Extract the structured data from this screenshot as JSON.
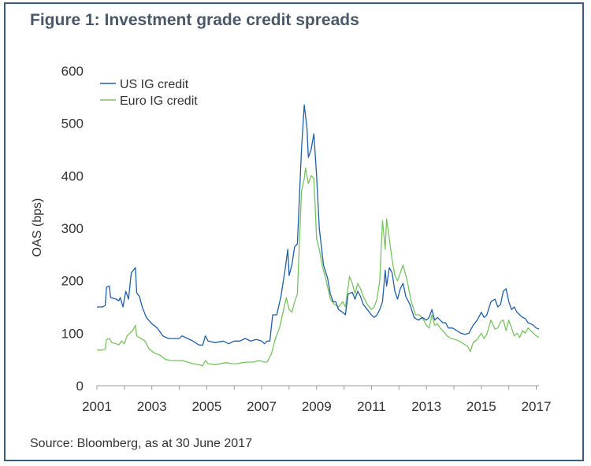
{
  "figure": {
    "title": "Figure 1: Investment grade credit spreads",
    "source": "Source: Bloomberg, as at 30 June 2017"
  },
  "colors": {
    "frame": "#3d5a80",
    "us": "#1f5fa8",
    "euro": "#78c360",
    "axis": "#9a9a9a"
  },
  "chart_data": {
    "type": "line",
    "title": "Figure 1: Investment grade credit spreads",
    "xlabel": "",
    "ylabel": "OAS (bps)",
    "xlim": [
      2001,
      2017.1
    ],
    "ylim": [
      0,
      600
    ],
    "xticks": [
      2001,
      2003,
      2005,
      2007,
      2009,
      2011,
      2013,
      2015,
      2017
    ],
    "yticks": [
      0,
      100,
      200,
      300,
      400,
      500,
      600
    ],
    "grid": false,
    "legend": "top-left",
    "series": [
      {
        "name": "US IG credit",
        "color": "#1f5fa8",
        "points": [
          [
            2001.0,
            150
          ],
          [
            2001.2,
            150
          ],
          [
            2001.3,
            153
          ],
          [
            2001.35,
            188
          ],
          [
            2001.45,
            190
          ],
          [
            2001.5,
            168
          ],
          [
            2001.7,
            165
          ],
          [
            2001.8,
            162
          ],
          [
            2001.85,
            168
          ],
          [
            2001.95,
            150
          ],
          [
            2002.05,
            180
          ],
          [
            2002.15,
            165
          ],
          [
            2002.25,
            215
          ],
          [
            2002.4,
            225
          ],
          [
            2002.45,
            177
          ],
          [
            2002.55,
            170
          ],
          [
            2002.65,
            150
          ],
          [
            2002.8,
            130
          ],
          [
            2003.0,
            118
          ],
          [
            2003.2,
            110
          ],
          [
            2003.4,
            95
          ],
          [
            2003.6,
            90
          ],
          [
            2003.8,
            90
          ],
          [
            2004.0,
            90
          ],
          [
            2004.1,
            95
          ],
          [
            2004.3,
            90
          ],
          [
            2004.5,
            85
          ],
          [
            2004.7,
            78
          ],
          [
            2004.85,
            77
          ],
          [
            2004.95,
            95
          ],
          [
            2005.05,
            85
          ],
          [
            2005.3,
            82
          ],
          [
            2005.6,
            85
          ],
          [
            2005.8,
            80
          ],
          [
            2006.0,
            85
          ],
          [
            2006.2,
            85
          ],
          [
            2006.4,
            90
          ],
          [
            2006.6,
            85
          ],
          [
            2006.8,
            88
          ],
          [
            2007.0,
            85
          ],
          [
            2007.1,
            80
          ],
          [
            2007.2,
            85
          ],
          [
            2007.3,
            85
          ],
          [
            2007.4,
            135
          ],
          [
            2007.55,
            135
          ],
          [
            2007.7,
            170
          ],
          [
            2007.85,
            220
          ],
          [
            2007.95,
            260
          ],
          [
            2008.0,
            210
          ],
          [
            2008.1,
            230
          ],
          [
            2008.2,
            265
          ],
          [
            2008.3,
            270
          ],
          [
            2008.35,
            330
          ],
          [
            2008.45,
            450
          ],
          [
            2008.55,
            535
          ],
          [
            2008.65,
            490
          ],
          [
            2008.7,
            435
          ],
          [
            2008.8,
            450
          ],
          [
            2008.9,
            480
          ],
          [
            2009.0,
            400
          ],
          [
            2009.1,
            300
          ],
          [
            2009.25,
            230
          ],
          [
            2009.4,
            205
          ],
          [
            2009.5,
            175
          ],
          [
            2009.6,
            160
          ],
          [
            2009.7,
            160
          ],
          [
            2009.8,
            145
          ],
          [
            2009.95,
            140
          ],
          [
            2010.05,
            135
          ],
          [
            2010.15,
            175
          ],
          [
            2010.3,
            178
          ],
          [
            2010.4,
            165
          ],
          [
            2010.5,
            180
          ],
          [
            2010.6,
            170
          ],
          [
            2010.7,
            155
          ],
          [
            2010.85,
            145
          ],
          [
            2011.0,
            135
          ],
          [
            2011.1,
            130
          ],
          [
            2011.2,
            135
          ],
          [
            2011.3,
            145
          ],
          [
            2011.4,
            160
          ],
          [
            2011.5,
            220
          ],
          [
            2011.55,
            190
          ],
          [
            2011.65,
            225
          ],
          [
            2011.75,
            215
          ],
          [
            2011.85,
            180
          ],
          [
            2011.95,
            165
          ],
          [
            2012.05,
            185
          ],
          [
            2012.15,
            195
          ],
          [
            2012.25,
            170
          ],
          [
            2012.4,
            155
          ],
          [
            2012.55,
            130
          ],
          [
            2012.7,
            125
          ],
          [
            2012.85,
            130
          ],
          [
            2013.0,
            125
          ],
          [
            2013.1,
            130
          ],
          [
            2013.2,
            145
          ],
          [
            2013.3,
            125
          ],
          [
            2013.4,
            130
          ],
          [
            2013.5,
            125
          ],
          [
            2013.6,
            120
          ],
          [
            2013.7,
            120
          ],
          [
            2013.8,
            110
          ],
          [
            2013.95,
            110
          ],
          [
            2014.1,
            105
          ],
          [
            2014.25,
            100
          ],
          [
            2014.4,
            98
          ],
          [
            2014.55,
            100
          ],
          [
            2014.7,
            115
          ],
          [
            2014.85,
            125
          ],
          [
            2015.0,
            140
          ],
          [
            2015.1,
            130
          ],
          [
            2015.2,
            135
          ],
          [
            2015.35,
            160
          ],
          [
            2015.5,
            165
          ],
          [
            2015.6,
            150
          ],
          [
            2015.7,
            155
          ],
          [
            2015.8,
            180
          ],
          [
            2015.9,
            185
          ],
          [
            2016.0,
            160
          ],
          [
            2016.1,
            145
          ],
          [
            2016.2,
            150
          ],
          [
            2016.3,
            140
          ],
          [
            2016.4,
            135
          ],
          [
            2016.5,
            130
          ],
          [
            2016.6,
            128
          ],
          [
            2016.7,
            120
          ],
          [
            2016.8,
            118
          ],
          [
            2016.9,
            115
          ],
          [
            2017.0,
            110
          ],
          [
            2017.1,
            108
          ]
        ]
      },
      {
        "name": "Euro IG credit",
        "color": "#78c360",
        "points": [
          [
            2001.0,
            68
          ],
          [
            2001.2,
            68
          ],
          [
            2001.3,
            70
          ],
          [
            2001.35,
            88
          ],
          [
            2001.45,
            90
          ],
          [
            2001.55,
            82
          ],
          [
            2001.7,
            80
          ],
          [
            2001.8,
            78
          ],
          [
            2001.9,
            85
          ],
          [
            2002.0,
            80
          ],
          [
            2002.1,
            95
          ],
          [
            2002.2,
            100
          ],
          [
            2002.3,
            105
          ],
          [
            2002.4,
            115
          ],
          [
            2002.45,
            95
          ],
          [
            2002.6,
            90
          ],
          [
            2002.75,
            85
          ],
          [
            2002.9,
            70
          ],
          [
            2003.1,
            62
          ],
          [
            2003.3,
            58
          ],
          [
            2003.5,
            50
          ],
          [
            2003.7,
            48
          ],
          [
            2003.9,
            48
          ],
          [
            2004.1,
            48
          ],
          [
            2004.3,
            45
          ],
          [
            2004.5,
            42
          ],
          [
            2004.7,
            40
          ],
          [
            2004.85,
            38
          ],
          [
            2004.95,
            48
          ],
          [
            2005.05,
            42
          ],
          [
            2005.3,
            40
          ],
          [
            2005.5,
            42
          ],
          [
            2005.7,
            44
          ],
          [
            2005.9,
            42
          ],
          [
            2006.1,
            42
          ],
          [
            2006.3,
            44
          ],
          [
            2006.5,
            45
          ],
          [
            2006.7,
            45
          ],
          [
            2006.9,
            48
          ],
          [
            2007.1,
            45
          ],
          [
            2007.2,
            45
          ],
          [
            2007.35,
            60
          ],
          [
            2007.5,
            90
          ],
          [
            2007.65,
            110
          ],
          [
            2007.8,
            145
          ],
          [
            2007.9,
            168
          ],
          [
            2008.0,
            145
          ],
          [
            2008.1,
            140
          ],
          [
            2008.2,
            160
          ],
          [
            2008.3,
            175
          ],
          [
            2008.35,
            240
          ],
          [
            2008.45,
            370
          ],
          [
            2008.55,
            395
          ],
          [
            2008.6,
            415
          ],
          [
            2008.7,
            385
          ],
          [
            2008.8,
            400
          ],
          [
            2008.9,
            395
          ],
          [
            2009.0,
            280
          ],
          [
            2009.1,
            260
          ],
          [
            2009.2,
            230
          ],
          [
            2009.35,
            200
          ],
          [
            2009.5,
            165
          ],
          [
            2009.65,
            155
          ],
          [
            2009.8,
            150
          ],
          [
            2009.95,
            160
          ],
          [
            2010.05,
            150
          ],
          [
            2010.1,
            170
          ],
          [
            2010.2,
            208
          ],
          [
            2010.3,
            195
          ],
          [
            2010.4,
            175
          ],
          [
            2010.5,
            195
          ],
          [
            2010.6,
            185
          ],
          [
            2010.7,
            170
          ],
          [
            2010.85,
            155
          ],
          [
            2011.0,
            145
          ],
          [
            2011.1,
            150
          ],
          [
            2011.2,
            165
          ],
          [
            2011.3,
            200
          ],
          [
            2011.4,
            315
          ],
          [
            2011.5,
            260
          ],
          [
            2011.55,
            318
          ],
          [
            2011.65,
            280
          ],
          [
            2011.75,
            240
          ],
          [
            2011.85,
            210
          ],
          [
            2011.95,
            200
          ],
          [
            2012.05,
            215
          ],
          [
            2012.15,
            230
          ],
          [
            2012.3,
            200
          ],
          [
            2012.45,
            160
          ],
          [
            2012.6,
            135
          ],
          [
            2012.75,
            135
          ],
          [
            2012.9,
            125
          ],
          [
            2013.0,
            115
          ],
          [
            2013.1,
            110
          ],
          [
            2013.2,
            135
          ],
          [
            2013.3,
            115
          ],
          [
            2013.4,
            118
          ],
          [
            2013.5,
            110
          ],
          [
            2013.6,
            105
          ],
          [
            2013.75,
            95
          ],
          [
            2013.9,
            90
          ],
          [
            2014.05,
            88
          ],
          [
            2014.2,
            85
          ],
          [
            2014.35,
            80
          ],
          [
            2014.5,
            75
          ],
          [
            2014.6,
            65
          ],
          [
            2014.7,
            82
          ],
          [
            2014.85,
            88
          ],
          [
            2015.0,
            100
          ],
          [
            2015.1,
            90
          ],
          [
            2015.2,
            98
          ],
          [
            2015.35,
            125
          ],
          [
            2015.5,
            108
          ],
          [
            2015.6,
            110
          ],
          [
            2015.7,
            122
          ],
          [
            2015.8,
            125
          ],
          [
            2015.9,
            105
          ],
          [
            2016.0,
            125
          ],
          [
            2016.1,
            110
          ],
          [
            2016.2,
            95
          ],
          [
            2016.3,
            100
          ],
          [
            2016.4,
            92
          ],
          [
            2016.5,
            105
          ],
          [
            2016.6,
            100
          ],
          [
            2016.7,
            110
          ],
          [
            2016.8,
            105
          ],
          [
            2016.9,
            100
          ],
          [
            2017.0,
            95
          ],
          [
            2017.1,
            92
          ]
        ]
      }
    ]
  }
}
